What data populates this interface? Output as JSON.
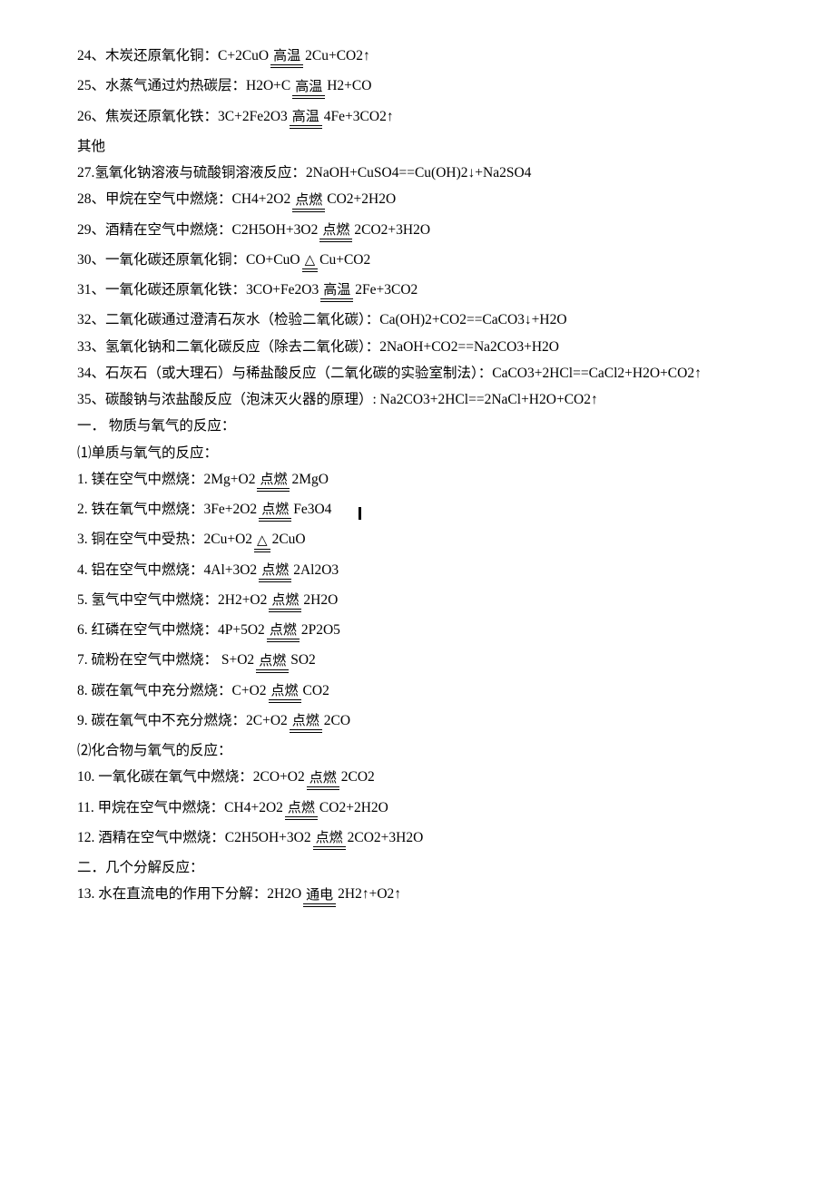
{
  "conditions": {
    "high_temp": "高温",
    "ignite": "点燃",
    "triangle": "△",
    "electric": "通电"
  },
  "lines": [
    {
      "type": "rxn",
      "pre": "24、木炭还原氧化铜：C+2CuO ",
      "cond": "high_temp",
      "post": " 2Cu+CO2↑"
    },
    {
      "type": "rxn",
      "pre": "25、水蒸气通过灼热碳层：H2O+C ",
      "cond": "high_temp",
      "post": "  H2+CO"
    },
    {
      "type": "rxn",
      "pre": "26、焦炭还原氧化铁：3C+2Fe2O3 ",
      "cond": "high_temp",
      "post": " 4Fe+3CO2↑"
    },
    {
      "type": "plain",
      "text": "其他"
    },
    {
      "type": "plain",
      "text": "27.氢氧化钠溶液与硫酸铜溶液反应：2NaOH+CuSO4==Cu(OH)2↓+Na2SO4"
    },
    {
      "type": "rxn",
      "pre": "28、甲烷在空气中燃烧：CH4+2O2 ",
      "cond": "ignite",
      "post": "  CO2+2H2O"
    },
    {
      "type": "rxn",
      "pre": "29、酒精在空气中燃烧：C2H5OH+3O2 ",
      "cond": "ignite",
      "post": "  2CO2+3H2O"
    },
    {
      "type": "rxn",
      "pre": "30、一氧化碳还原氧化铜：CO+CuO ",
      "cond": "triangle",
      "post": "  Cu+CO2"
    },
    {
      "type": "rxn",
      "pre": "31、一氧化碳还原氧化铁：3CO+Fe2O3 ",
      "cond": "high_temp",
      "post": " 2Fe+3CO2"
    },
    {
      "type": "plain",
      "text": "32、二氧化碳通过澄清石灰水（检验二氧化碳）：Ca(OH)2+CO2==CaCO3↓+H2O"
    },
    {
      "type": "plain",
      "text": "33、氢氧化钠和二氧化碳反应（除去二氧化碳）：2NaOH+CO2==Na2CO3+H2O"
    },
    {
      "type": "plain",
      "text": "34、石灰石（或大理石）与稀盐酸反应（二氧化碳的实验室制法）：CaCO3+2HCl==CaCl2+H2O+CO2↑"
    },
    {
      "type": "plain",
      "text": "35、碳酸钠与浓盐酸反应（泡沫灭火器的原理）: Na2CO3+2HCl==2NaCl+H2O+CO2↑"
    },
    {
      "type": "plain",
      "text": "一．  物质与氧气的反应："
    },
    {
      "type": "plain",
      "text": "⑴单质与氧气的反应："
    },
    {
      "type": "rxn",
      "pre": "1.  镁在空气中燃烧：2Mg+O2 ",
      "cond": "ignite",
      "post": "  2MgO"
    },
    {
      "type": "rxn",
      "pre": "2.  铁在氧气中燃烧：3Fe+2O2 ",
      "cond": "ignite",
      "post": "  Fe3O4",
      "cursor": true
    },
    {
      "type": "rxn",
      "pre": "3.  铜在空气中受热：2Cu+O2 ",
      "cond": "triangle",
      "post": "  2CuO"
    },
    {
      "type": "rxn",
      "pre": "4.  铝在空气中燃烧：4Al+3O2 ",
      "cond": "ignite",
      "post": " 2Al2O3"
    },
    {
      "type": "rxn",
      "pre": "5.  氢气中空气中燃烧：2H2+O2 ",
      "cond": "ignite",
      "post": "  2H2O"
    },
    {
      "type": "rxn",
      "pre": "6.  红磷在空气中燃烧：4P+5O2 ",
      "cond": "ignite",
      "post": " 2P2O5"
    },
    {
      "type": "rxn",
      "pre": "7.  硫粉在空气中燃烧：  S+O2 ",
      "cond": "ignite",
      "post": "  SO2"
    },
    {
      "type": "rxn",
      "pre": "8.  碳在氧气中充分燃烧：C+O2 ",
      "cond": "ignite",
      "post": "  CO2"
    },
    {
      "type": "rxn",
      "pre": "9.  碳在氧气中不充分燃烧：2C+O2 ",
      "cond": "ignite",
      "post": "  2CO"
    },
    {
      "type": "plain",
      "text": "⑵化合物与氧气的反应："
    },
    {
      "type": "rxn",
      "pre": "10.  一氧化碳在氧气中燃烧：2CO+O2 ",
      "cond": "ignite",
      "post": "  2CO2"
    },
    {
      "type": "rxn",
      "pre": "11.  甲烷在空气中燃烧：CH4+2O2 ",
      "cond": "ignite",
      "post": "  CO2+2H2O"
    },
    {
      "type": "rxn",
      "pre": "12.  酒精在空气中燃烧：C2H5OH+3O2 ",
      "cond": "ignite",
      "post": "  2CO2+3H2O"
    },
    {
      "type": "plain",
      "text": "二．几个分解反应："
    },
    {
      "type": "rxn",
      "pre": "13.  水在直流电的作用下分解：2H2O ",
      "cond": "electric",
      "post": "  2H2↑+O2↑"
    }
  ]
}
